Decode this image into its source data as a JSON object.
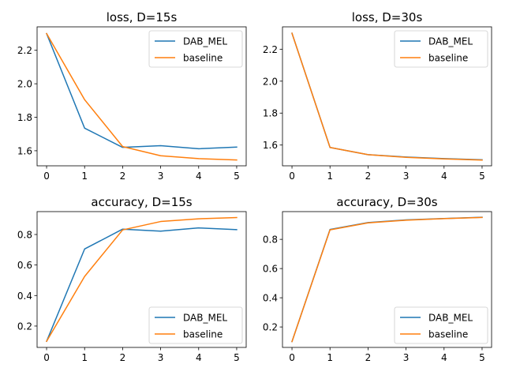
{
  "colors": {
    "DAB_MEL": "#1f77b4",
    "baseline": "#ff7f0e"
  },
  "chart_data": [
    {
      "type": "line",
      "title": "loss, D=15s",
      "x": [
        0,
        1,
        2,
        3,
        4,
        5
      ],
      "series": [
        {
          "name": "DAB_MEL",
          "values": [
            2.3,
            1.735,
            1.62,
            1.63,
            1.612,
            1.622
          ]
        },
        {
          "name": "baseline",
          "values": [
            2.3,
            1.905,
            1.625,
            1.57,
            1.553,
            1.545
          ]
        }
      ],
      "xlim": [
        -0.25,
        5.25
      ],
      "ylim": [
        1.51,
        2.34
      ],
      "yticks": [
        1.6,
        1.8,
        2.0,
        2.2
      ],
      "ytick_labels": [
        "1.6",
        "1.8",
        "2.0",
        "2.2"
      ],
      "xticks": [
        0,
        1,
        2,
        3,
        4,
        5
      ],
      "xtick_labels": [
        "0",
        "1",
        "2",
        "3",
        "4",
        "5"
      ],
      "grid": false,
      "legend_position": "top-right"
    },
    {
      "type": "line",
      "title": "loss, D=30s",
      "x": [
        0,
        1,
        2,
        3,
        4,
        5
      ],
      "series": [
        {
          "name": "DAB_MEL",
          "values": [
            2.3,
            1.585,
            1.54,
            1.525,
            1.515,
            1.508
          ]
        },
        {
          "name": "baseline",
          "values": [
            2.3,
            1.585,
            1.54,
            1.523,
            1.513,
            1.506
          ]
        }
      ],
      "xlim": [
        -0.25,
        5.25
      ],
      "ylim": [
        1.47,
        2.34
      ],
      "yticks": [
        1.6,
        1.8,
        2.0,
        2.2
      ],
      "ytick_labels": [
        "1.6",
        "1.8",
        "2.0",
        "2.2"
      ],
      "xticks": [
        0,
        1,
        2,
        3,
        4,
        5
      ],
      "xtick_labels": [
        "0",
        "1",
        "2",
        "3",
        "4",
        "5"
      ],
      "grid": false,
      "legend_position": "top-right"
    },
    {
      "type": "line",
      "title": "accuracy, D=15s",
      "x": [
        0,
        1,
        2,
        3,
        4,
        5
      ],
      "series": [
        {
          "name": "DAB_MEL",
          "values": [
            0.1,
            0.705,
            0.835,
            0.822,
            0.843,
            0.832
          ]
        },
        {
          "name": "baseline",
          "values": [
            0.1,
            0.525,
            0.83,
            0.885,
            0.903,
            0.911
          ]
        }
      ],
      "xlim": [
        -0.25,
        5.25
      ],
      "ylim": [
        0.06,
        0.95
      ],
      "yticks": [
        0.2,
        0.4,
        0.6,
        0.8
      ],
      "ytick_labels": [
        "0.2",
        "0.4",
        "0.6",
        "0.8"
      ],
      "xticks": [
        0,
        1,
        2,
        3,
        4,
        5
      ],
      "xtick_labels": [
        "0",
        "1",
        "2",
        "3",
        "4",
        "5"
      ],
      "grid": false,
      "legend_position": "bottom-right"
    },
    {
      "type": "line",
      "title": "accuracy, D=30s",
      "x": [
        0,
        1,
        2,
        3,
        4,
        5
      ],
      "series": [
        {
          "name": "DAB_MEL",
          "values": [
            0.1,
            0.868,
            0.915,
            0.933,
            0.943,
            0.951
          ]
        },
        {
          "name": "baseline",
          "values": [
            0.1,
            0.865,
            0.913,
            0.931,
            0.942,
            0.95
          ]
        }
      ],
      "xlim": [
        -0.25,
        5.25
      ],
      "ylim": [
        0.06,
        0.99
      ],
      "yticks": [
        0.2,
        0.4,
        0.6,
        0.8
      ],
      "ytick_labels": [
        "0.2",
        "0.4",
        "0.6",
        "0.8"
      ],
      "xticks": [
        0,
        1,
        2,
        3,
        4,
        5
      ],
      "xtick_labels": [
        "0",
        "1",
        "2",
        "3",
        "4",
        "5"
      ],
      "grid": false,
      "legend_position": "bottom-right"
    }
  ]
}
